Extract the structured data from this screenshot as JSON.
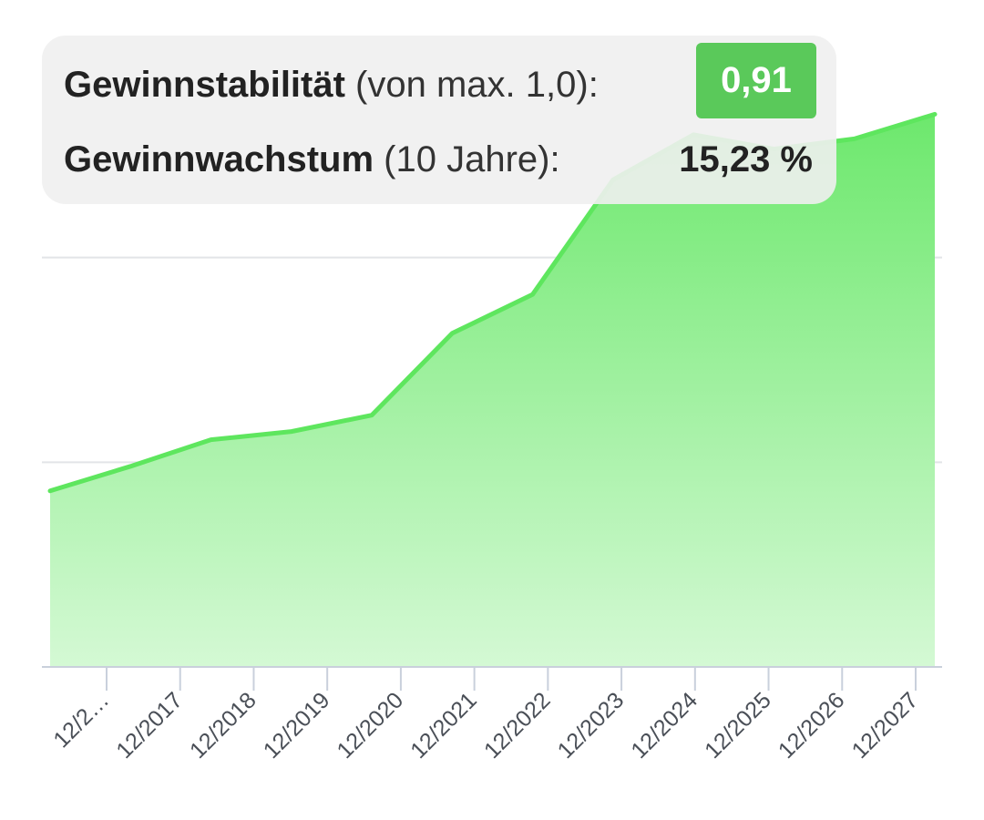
{
  "stats": {
    "stability_label": "Gewinnstabilität",
    "stability_suffix": " (von max. 1,0):",
    "stability_value": "0,91",
    "growth_label": "Gewinnwachstum",
    "growth_suffix": " (10 Jahre):",
    "growth_value": "15,23 %"
  },
  "colors": {
    "line": "#5ee65e",
    "fill_top": "#6de86d",
    "fill_bottom": "#d4f9d4",
    "badge": "#5ac95a",
    "grid": "#e2e4e8",
    "axis": "#c9d0dc"
  },
  "chart_data": {
    "type": "area",
    "categories": [
      "12/2…",
      "12/2017",
      "12/2018",
      "12/2019",
      "12/2020",
      "12/2021",
      "12/2022",
      "12/2023",
      "12/2024",
      "12/2025",
      "12/2026",
      "12/2027"
    ],
    "values": [
      0.86,
      0.98,
      1.11,
      1.15,
      1.23,
      1.63,
      1.82,
      2.38,
      2.6,
      2.53,
      2.58,
      2.7
    ],
    "ylim": [
      0,
      3.0
    ],
    "grid": "horizontal",
    "title": "",
    "xlabel": "",
    "ylabel": ""
  }
}
